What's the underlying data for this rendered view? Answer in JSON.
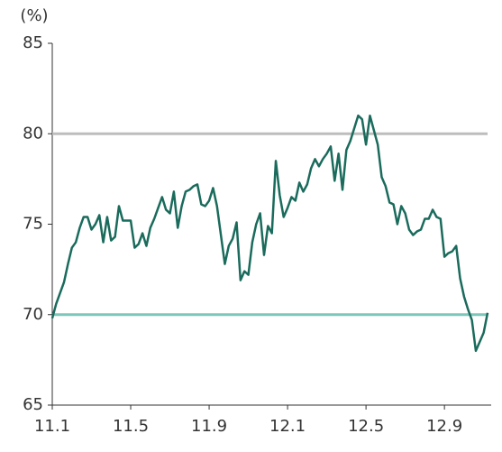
{
  "chart_data": {
    "type": "line",
    "y_unit_label": "(%)",
    "categories": [
      "11.1",
      null,
      null,
      null,
      null,
      null,
      null,
      null,
      null,
      null,
      null,
      null,
      null,
      null,
      null,
      null,
      null,
      null,
      null,
      null,
      "11.5",
      null,
      null,
      null,
      null,
      null,
      null,
      null,
      null,
      null,
      null,
      null,
      null,
      null,
      null,
      null,
      null,
      null,
      null,
      null,
      "11.9",
      null,
      null,
      null,
      null,
      null,
      null,
      null,
      null,
      null,
      null,
      null,
      null,
      null,
      null,
      null,
      null,
      null,
      null,
      null,
      "12.1",
      null,
      null,
      null,
      null,
      null,
      null,
      null,
      null,
      null,
      null,
      null,
      null,
      null,
      null,
      null,
      null,
      null,
      null,
      null,
      "12.5",
      null,
      null,
      null,
      null,
      null,
      null,
      null,
      null,
      null,
      null,
      null,
      null,
      null,
      null,
      null,
      null,
      null,
      null,
      null,
      "12.9",
      null,
      null,
      null,
      null,
      null,
      null,
      null,
      null,
      null,
      null,
      null
    ],
    "series": [
      {
        "color": "#1a6b5c",
        "values": [
          69.8,
          70.6,
          71.2,
          71.8,
          72.8,
          73.7,
          74.0,
          74.8,
          75.4,
          75.4,
          74.7,
          75.0,
          75.5,
          74.0,
          75.4,
          74.1,
          74.3,
          76.0,
          75.2,
          75.2,
          75.2,
          73.7,
          73.9,
          74.5,
          73.8,
          74.8,
          75.3,
          75.9,
          76.5,
          75.8,
          75.6,
          76.8,
          74.8,
          76.0,
          76.8,
          76.9,
          77.1,
          77.2,
          76.1,
          76.0,
          76.3,
          77.0,
          76.0,
          74.4,
          72.8,
          73.8,
          74.2,
          75.1,
          71.9,
          72.4,
          72.2,
          74.0,
          75.0,
          75.6,
          73.3,
          74.9,
          74.5,
          78.5,
          76.6,
          75.4,
          75.9,
          76.5,
          76.3,
          77.3,
          76.8,
          77.2,
          78.1,
          78.6,
          78.2,
          78.6,
          78.9,
          79.3,
          77.4,
          78.9,
          76.9,
          79.1,
          79.6,
          80.3,
          81.0,
          80.8,
          79.4,
          81.0,
          80.2,
          79.4,
          77.6,
          77.1,
          76.2,
          76.1,
          75.0,
          76.0,
          75.6,
          74.7,
          74.4,
          74.6,
          74.7,
          75.3,
          75.3,
          75.8,
          75.4,
          75.3,
          73.2,
          73.4,
          73.5,
          73.8,
          72.0,
          71.0,
          70.3,
          69.7,
          68.0,
          68.5,
          69.0,
          70.1
        ]
      }
    ],
    "reference_lines": [
      {
        "value": 80,
        "color": "#bdbdbd"
      },
      {
        "value": 70,
        "color": "#7cc7b9"
      }
    ],
    "ylim": [
      65,
      85
    ],
    "yticks": [
      65,
      70,
      75,
      80,
      85
    ]
  }
}
